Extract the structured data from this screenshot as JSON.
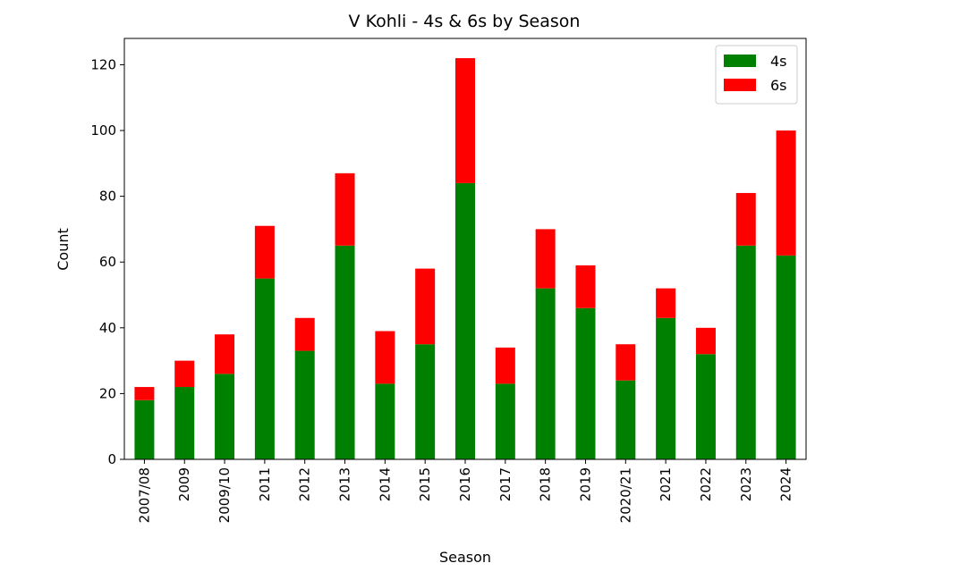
{
  "chart_data": {
    "type": "bar",
    "stacked": true,
    "title": "V Kohli - 4s & 6s by Season",
    "xlabel": "Season",
    "ylabel": "Count",
    "ylim": [
      0,
      128
    ],
    "yticks": [
      0,
      20,
      40,
      60,
      80,
      100,
      120
    ],
    "grid": false,
    "legend_position": "top-right",
    "categories": [
      "2007/08",
      "2009",
      "2009/10",
      "2011",
      "2012",
      "2013",
      "2014",
      "2015",
      "2016",
      "2017",
      "2018",
      "2019",
      "2020/21",
      "2021",
      "2022",
      "2023",
      "2024"
    ],
    "series": [
      {
        "name": "4s",
        "color": "#008000",
        "values": [
          18,
          22,
          26,
          55,
          33,
          65,
          23,
          35,
          84,
          23,
          52,
          46,
          24,
          43,
          32,
          65,
          62
        ]
      },
      {
        "name": "6s",
        "color": "#ff0000",
        "values": [
          4,
          8,
          12,
          16,
          10,
          22,
          16,
          23,
          38,
          11,
          18,
          13,
          11,
          9,
          8,
          16,
          38
        ]
      }
    ]
  }
}
